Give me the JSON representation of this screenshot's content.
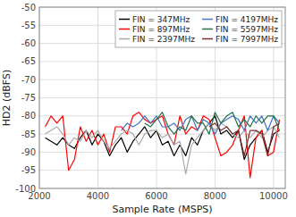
{
  "chart_data": {
    "type": "line",
    "x_label": "Sample Rate (MSPS)",
    "y_label": "HD2 (dBFS)",
    "xlim": [
      2000,
      10400
    ],
    "ylim": [
      -100,
      -50
    ],
    "xticks": [
      2000,
      4000,
      6000,
      8000,
      10000
    ],
    "yticks": [
      -100,
      -95,
      -90,
      -85,
      -80,
      -75,
      -70,
      -65,
      -60,
      -55,
      -50
    ],
    "grid": true,
    "legend": "upper right",
    "series": [
      {
        "name": "FIN = 347MHz",
        "color": "#000000",
        "x": [
          2200,
          2400,
          2600,
          2800,
          3000,
          3200,
          3400,
          3600,
          3800,
          4000,
          4200,
          4400,
          4600,
          4800,
          5000,
          5200,
          5400,
          5600,
          5800,
          6000,
          6200,
          6400,
          6600,
          6800,
          7000,
          7200,
          7400,
          7600,
          7800,
          8000,
          8200,
          8400,
          8600,
          8800,
          9000,
          9200,
          9400,
          9600,
          9800,
          10000,
          10200
        ],
        "values": [
          -86,
          -87,
          -88,
          -86,
          -88,
          -89,
          -86,
          -84,
          -88,
          -85,
          -87,
          -91,
          -88,
          -86,
          -90,
          -87,
          -85,
          -83,
          -86,
          -84,
          -88,
          -87,
          -91,
          -88,
          -91,
          -86,
          -88,
          -84,
          -82,
          -80,
          -85,
          -84,
          -86,
          -84,
          -92,
          -88,
          -86,
          -84,
          -90,
          -85,
          -84
        ]
      },
      {
        "name": "FIN = 897MHz",
        "color": "#ff0000",
        "x": [
          2200,
          2400,
          2600,
          2800,
          3000,
          3200,
          3400,
          3600,
          3800,
          4000,
          4200,
          4400,
          4600,
          4800,
          5000,
          5200,
          5400,
          5600,
          5800,
          6000,
          6200,
          6400,
          6600,
          6800,
          7000,
          7200,
          7400,
          7600,
          7800,
          8000,
          8200,
          8400,
          8600,
          8800,
          9000,
          9200,
          9400,
          9600,
          9800,
          10000,
          10200
        ],
        "values": [
          -83,
          -80,
          -82,
          -80,
          -95,
          -92,
          -83,
          -87,
          -84,
          -88,
          -85,
          -90,
          -83,
          -83,
          -85,
          -80,
          -79,
          -81,
          -82,
          -81,
          -80,
          -85,
          -88,
          -80,
          -85,
          -83,
          -84,
          -80,
          -81,
          -86,
          -91,
          -90,
          -88,
          -84,
          -80,
          -97,
          -86,
          -84,
          -91,
          -90,
          -81
        ]
      },
      {
        "name": "FIN = 2397MHz",
        "color": "#aaaaaa",
        "x": [
          2200,
          2400,
          2600,
          2800,
          3000,
          3200,
          3400,
          3600,
          3800,
          4000,
          4200,
          4400,
          4600,
          4800,
          5000,
          5200,
          5400,
          5600,
          5800,
          6000,
          6200,
          6400,
          6600,
          6800,
          7000,
          7200,
          7400,
          7600,
          7800,
          8000,
          8200,
          8400,
          8600,
          8800,
          9000,
          9200,
          9400,
          9600,
          9800,
          10000,
          10200
        ],
        "values": [
          -85,
          -84,
          -83,
          -85,
          -88,
          -86,
          -87,
          -84,
          -86,
          -84,
          -87,
          -89,
          -87,
          -85,
          -84,
          -85,
          -88,
          -85,
          -84,
          -84,
          -86,
          -85,
          -88,
          -87,
          -96,
          -88,
          -86,
          -84,
          -82,
          -84,
          -82,
          -83,
          -85,
          -86,
          -84,
          -86,
          -84,
          -86,
          -84,
          -83,
          -86
        ]
      },
      {
        "name": "FIN = 4197MHz",
        "color": "#4472c4",
        "x": [
          4800,
          5000,
          5200,
          5400,
          5600,
          5800,
          6000,
          6200,
          6400,
          6600,
          6800,
          7000,
          7200,
          7400,
          7600,
          7800,
          8000,
          8200,
          8400,
          8600,
          8800,
          9000,
          9200,
          9400,
          9600,
          9800,
          10000,
          10200
        ],
        "values": [
          -84,
          -82,
          -83,
          -82,
          -80,
          -82,
          -80,
          -83,
          -83,
          -82,
          -84,
          -81,
          -80,
          -84,
          -81,
          -82,
          -85,
          -82,
          -81,
          -80,
          -81,
          -84,
          -80,
          -82,
          -80,
          -84,
          -80,
          -82
        ]
      },
      {
        "name": "FIN = 5597MHz",
        "color": "#217346",
        "x": [
          5600,
          5800,
          6000,
          6200,
          6400,
          6600,
          6800,
          7000,
          7200,
          7400,
          7600,
          7800,
          8000,
          8200,
          8400,
          8600,
          8800,
          9000,
          9200,
          9400,
          9600,
          9800,
          10000,
          10200
        ],
        "values": [
          -82,
          -83,
          -81,
          -79,
          -83,
          -85,
          -83,
          -84,
          -80,
          -82,
          -82,
          -85,
          -79,
          -82,
          -80,
          -79,
          -83,
          -81,
          -83,
          -80,
          -82,
          -80,
          -80,
          -84
        ]
      },
      {
        "name": "FIN = 7997MHz",
        "color": "#7B2C2C",
        "x": [
          7800,
          8000,
          8200,
          8400,
          8600,
          8800,
          9000,
          9200,
          9400,
          9600,
          9800,
          10000,
          10200
        ],
        "values": [
          -83,
          -82,
          -84,
          -83,
          -85,
          -84,
          -91,
          -84,
          -84,
          -85,
          -91,
          -83,
          -82
        ]
      }
    ]
  }
}
